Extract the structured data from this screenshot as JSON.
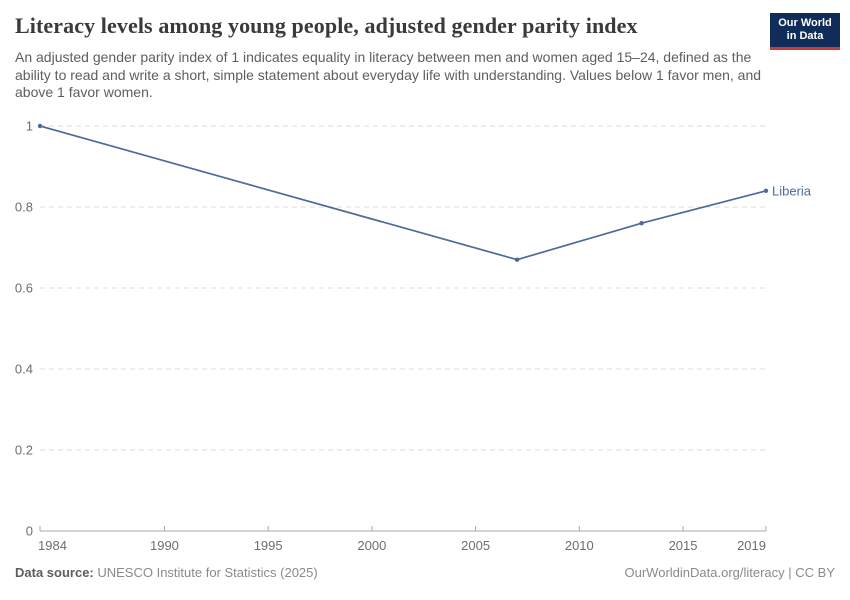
{
  "header": {
    "title": "Literacy levels among young people, adjusted gender parity index",
    "subtitle": "An adjusted gender parity index of 1 indicates equality in literacy between men and women aged 15–24, defined as the ability to read and write a short, simple statement about everyday life with understanding. Values below 1 favor men, and above 1 favor women.",
    "logo": {
      "line1": "Our World",
      "line2": "in Data"
    }
  },
  "chart_data": {
    "type": "line",
    "title": "Literacy levels among young people, adjusted gender parity index",
    "xlabel": "",
    "ylabel": "",
    "xlim": [
      1984,
      2019
    ],
    "ylim": [
      0,
      1
    ],
    "x_ticks": [
      1984,
      1990,
      1995,
      2000,
      2005,
      2010,
      2015,
      2019
    ],
    "y_ticks": [
      0,
      0.2,
      0.4,
      0.6,
      0.8,
      1
    ],
    "grid": "horizontal-dashed",
    "legend_position": "end-of-line-label",
    "series": [
      {
        "name": "Liberia",
        "color": "#4C6A9C",
        "points": [
          [
            1984,
            1.0
          ],
          [
            2007,
            0.67
          ],
          [
            2013,
            0.76
          ],
          [
            2019,
            0.84
          ]
        ]
      }
    ]
  },
  "footer": {
    "source_label": "Data source:",
    "source_value": " UNESCO Institute for Statistics (2025)",
    "credit": "OurWorldinData.org/literacy | CC BY"
  },
  "colors": {
    "series_blue": "#4C6A9C",
    "logo_bg": "#102d5a",
    "logo_accent": "#c93c3c",
    "grid_line": "#dedede",
    "axis_line": "#a8a8a8",
    "tick_text": "#6e6e6e"
  }
}
